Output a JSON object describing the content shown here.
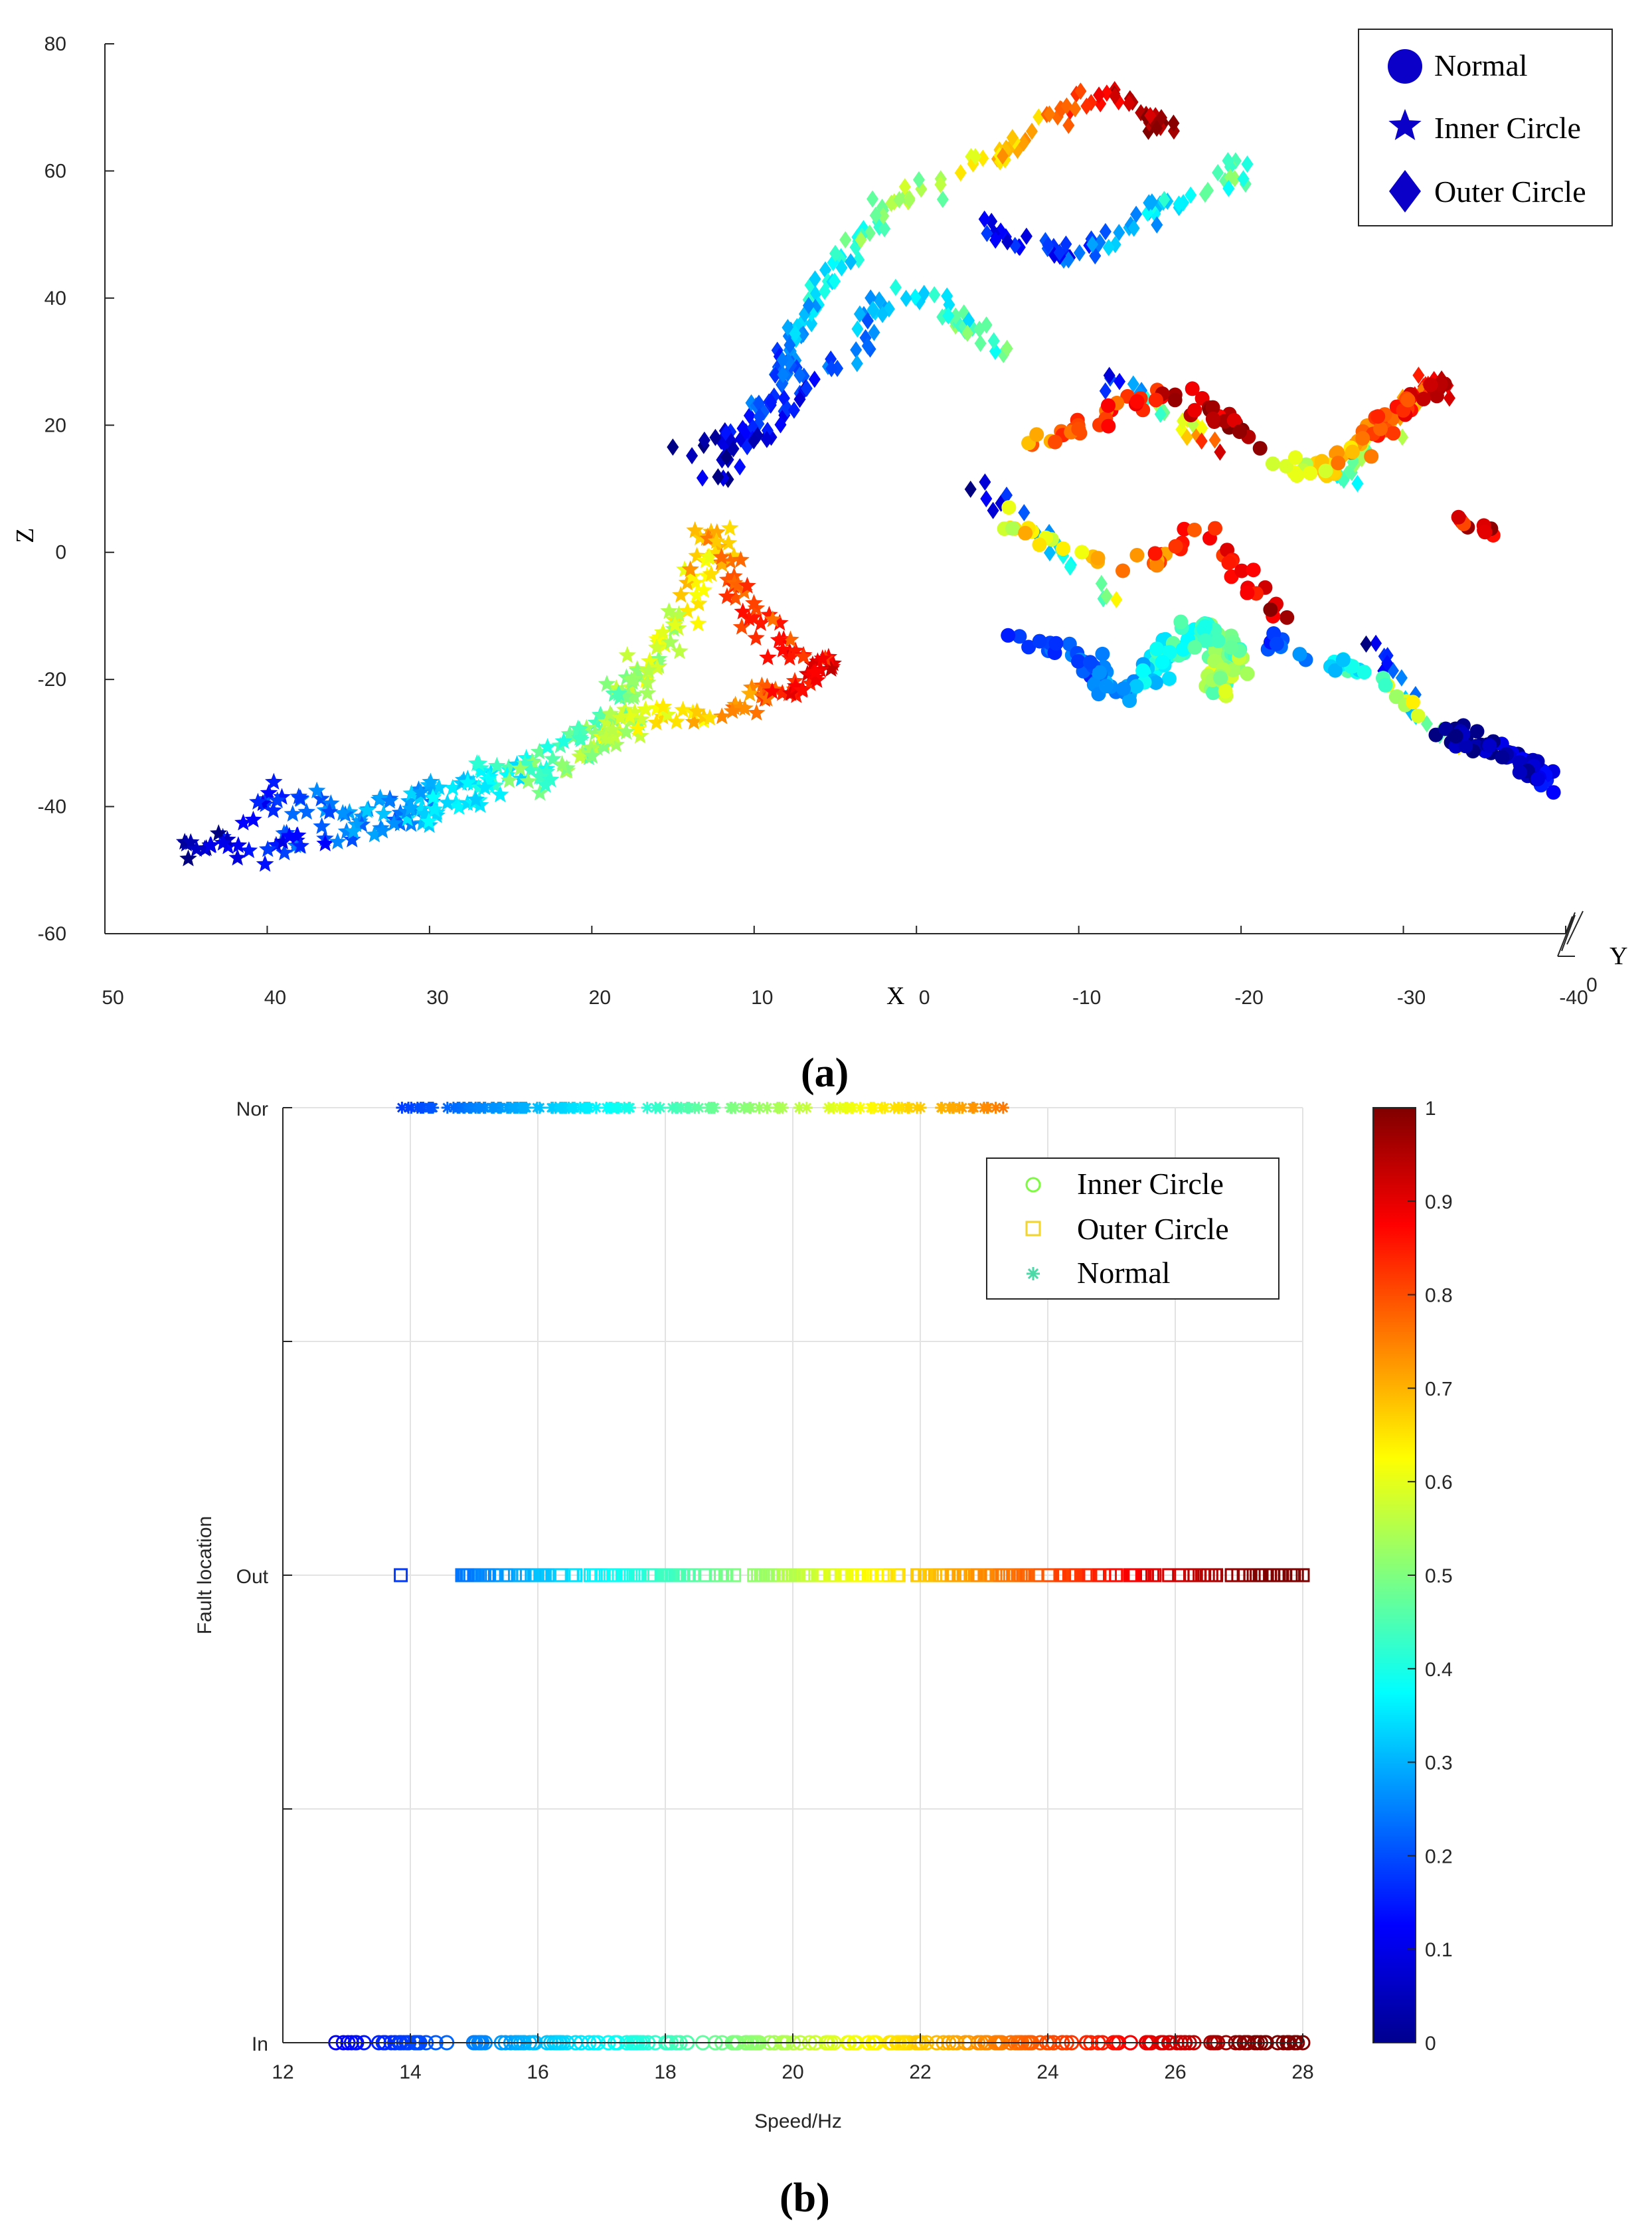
{
  "chart_data": [
    {
      "type": "scatter",
      "panel_label": "(a)",
      "title": "",
      "xlabel": "X",
      "ylabel": "Z",
      "zlabel": "Y",
      "x_ticks": [
        "50",
        "40",
        "30",
        "20",
        "10",
        "0",
        "-10",
        "-20",
        "-30",
        "-40"
      ],
      "z_ticks": [
        "80",
        "60",
        "40",
        "20",
        "0",
        "-20",
        "-40",
        "-60"
      ],
      "y_ticks": [
        "0"
      ],
      "xlim": [
        50,
        -40
      ],
      "zlim": [
        -60,
        80
      ],
      "legend": {
        "position": "top-right",
        "entries": [
          {
            "label": "Normal",
            "marker": "circle"
          },
          {
            "label": "Inner Circle",
            "marker": "star"
          },
          {
            "label": "Outer Circle",
            "marker": "diamond"
          }
        ]
      },
      "series": [
        {
          "name": "Inner Circle",
          "marker": "star",
          "paths": [
            {
              "pts": [
                [
                  46,
                  -47
                ],
                [
                  44,
                  -46
                ],
                [
                  42,
                  -44
                ],
                [
                  40,
                  -38
                ],
                [
                  37,
                  -40
                ],
                [
                  34,
                  -42
                ],
                [
                  31,
                  -39
                ],
                [
                  28,
                  -36
                ],
                [
                  25,
                  -33
                ],
                [
                  22,
                  -30
                ],
                [
                  19,
                  -25
                ],
                [
                  17,
                  -17
                ],
                [
                  15,
                  -10
                ],
                [
                  14,
                  -3
                ],
                [
                  13,
                  3
                ],
                [
                  12,
                  -2
                ],
                [
                  11,
                  -8
                ],
                [
                  9,
                  -14
                ],
                [
                  7,
                  -18
                ],
                [
                  5,
                  -17
                ]
              ],
              "c": [
                0.02,
                0.95
              ],
              "jitter": [
                1.6,
                3.2
              ],
              "count": 230
            },
            {
              "pts": [
                [
                  45,
                  -45
                ],
                [
                  42,
                  -47
                ],
                [
                  38,
                  -45
                ],
                [
                  35,
                  -44
                ],
                [
                  31,
                  -41
                ],
                [
                  27,
                  -38
                ],
                [
                  24,
                  -35
                ],
                [
                  21,
                  -32
                ],
                [
                  19,
                  -28
                ],
                [
                  16,
                  -25
                ],
                [
                  13,
                  -26
                ],
                [
                  10,
                  -22
                ],
                [
                  8,
                  -22
                ],
                [
                  6,
                  -18
                ]
              ],
              "c": [
                0.05,
                0.9
              ],
              "jitter": [
                1.6,
                3.0
              ],
              "count": 160
            }
          ]
        },
        {
          "name": "Outer Circle",
          "marker": "diamond",
          "paths": [
            {
              "pts": [
                [
                  16,
                  16
                ],
                [
                  13,
                  16
                ],
                [
                  11,
                  20
                ],
                [
                  9,
                  26
                ],
                [
                  8,
                  33
                ],
                [
                  7,
                  40
                ],
                [
                  5,
                  46
                ],
                [
                  3,
                  52
                ],
                [
                  1,
                  56
                ],
                [
                  -2,
                  60
                ],
                [
                  -5,
                  63
                ],
                [
                  -7,
                  67
                ],
                [
                  -9,
                  71
                ],
                [
                  -11,
                  72
                ],
                [
                  -13,
                  70
                ],
                [
                  -15,
                  66
                ]
              ],
              "c": [
                0.0,
                1.0
              ],
              "jitter": [
                1.5,
                3.0
              ],
              "count": 170
            },
            {
              "pts": [
                [
                  13,
                  12
                ],
                [
                  10,
                  18
                ],
                [
                  8,
                  24
                ],
                [
                  6,
                  28
                ],
                [
                  4,
                  32
                ],
                [
                  3,
                  38
                ],
                [
                  1,
                  41
                ],
                [
                  -1,
                  40
                ],
                [
                  -3,
                  35
                ],
                [
                  -5,
                  31
                ]
              ],
              "c": [
                0.05,
                0.5
              ],
              "jitter": [
                1.4,
                2.6
              ],
              "count": 80
            },
            {
              "pts": [
                [
                  -3,
                  52
                ],
                [
                  -6,
                  48
                ],
                [
                  -9,
                  47
                ],
                [
                  -11,
                  49
                ],
                [
                  -13,
                  52
                ],
                [
                  -15,
                  55
                ],
                [
                  -17,
                  56
                ],
                [
                  -19,
                  58
                ],
                [
                  -19,
                  62
                ]
              ],
              "c": [
                0.1,
                0.5
              ],
              "jitter": [
                1.3,
                2.6
              ],
              "count": 70
            },
            {
              "pts": [
                [
                  -3,
                  10
                ],
                [
                  -6,
                  6
                ],
                [
                  -8,
                  2
                ],
                [
                  -9,
                  -4
                ],
                [
                  -12,
                  -9
                ]
              ],
              "c": [
                0.05,
                0.6
              ],
              "jitter": [
                1.0,
                2.5
              ],
              "count": 20
            },
            {
              "pts": [
                [
                  -26,
                  11
                ],
                [
                  -27,
                  15
                ],
                [
                  -28,
                  19
                ],
                [
                  -30,
                  23
                ],
                [
                  -31,
                  27
                ],
                [
                  -32,
                  25
                ]
              ],
              "c": [
                0.4,
                0.95
              ],
              "jitter": [
                1.2,
                2.6
              ],
              "count": 60
            },
            {
              "pts": [
                [
                  -11,
                  28
                ],
                [
                  -14,
                  24
                ],
                [
                  -16,
                  20
                ],
                [
                  -18,
                  16
                ]
              ],
              "c": [
                0.1,
                0.9
              ],
              "jitter": [
                1.2,
                2.5
              ],
              "count": 25
            },
            {
              "pts": [
                [
                  -27,
                  -14
                ],
                [
                  -29,
                  -20
                ],
                [
                  -31,
                  -27
                ],
                [
                  -33,
                  -32
                ]
              ],
              "c": [
                0.0,
                0.6
              ],
              "jitter": [
                1.0,
                2.0
              ],
              "count": 18
            }
          ]
        },
        {
          "name": "Normal",
          "marker": "circle",
          "paths": [
            {
              "pts": [
                [
                  -6,
                  16
                ],
                [
                  -9,
                  19
                ],
                [
                  -12,
                  23
                ],
                [
                  -15,
                  26
                ],
                [
                  -17,
                  24
                ],
                [
                  -19,
                  20
                ],
                [
                  -20,
                  17
                ]
              ],
              "c": [
                0.75,
                1.0
              ],
              "jitter": [
                1.3,
                2.6
              ],
              "count": 50
            },
            {
              "pts": [
                [
                  -5,
                  5
                ],
                [
                  -8,
                  1
                ],
                [
                  -11,
                  -3
                ],
                [
                  -14,
                  -1
                ],
                [
                  -17,
                  3
                ],
                [
                  -20,
                  -4
                ],
                [
                  -22,
                  -10
                ]
              ],
              "c": [
                0.6,
                0.95
              ],
              "jitter": [
                1.4,
                3.0
              ],
              "count": 50
            },
            {
              "pts": [
                [
                  -6,
                  -14
                ],
                [
                  -9,
                  -15
                ],
                [
                  -11,
                  -20
                ],
                [
                  -13,
                  -22
                ],
                [
                  -15,
                  -16
                ],
                [
                  -17,
                  -12
                ],
                [
                  -19,
                  -16
                ],
                [
                  -18,
                  -22
                ]
              ],
              "c": [
                0.15,
                0.55
              ],
              "jitter": [
                1.4,
                3.2
              ],
              "count": 150
            },
            {
              "pts": [
                [
                  -22,
                  14
                ],
                [
                  -24,
                  12
                ],
                [
                  -26,
                  15
                ],
                [
                  -28,
                  20
                ],
                [
                  -30,
                  24
                ],
                [
                  -32,
                  26
                ]
              ],
              "c": [
                0.55,
                0.95
              ],
              "jitter": [
                1.2,
                2.6
              ],
              "count": 60
            },
            {
              "pts": [
                [
                  -21,
                  -14
                ],
                [
                  -24,
                  -16
                ],
                [
                  -27,
                  -19
                ],
                [
                  -29,
                  -22
                ],
                [
                  -31,
                  -26
                ]
              ],
              "c": [
                0.2,
                0.65
              ],
              "jitter": [
                1.0,
                2.0
              ],
              "count": 30
            },
            {
              "pts": [
                [
                  -32,
                  -28
                ],
                [
                  -34,
                  -30
                ],
                [
                  -36,
                  -32
                ],
                [
                  -38,
                  -35
                ],
                [
                  -39,
                  -38
                ]
              ],
              "c": [
                0.0,
                0.12
              ],
              "jitter": [
                1.3,
                2.6
              ],
              "count": 70
            },
            {
              "pts": [
                [
                  -33,
                  5
                ],
                [
                  -34,
                  4
                ],
                [
                  -35,
                  3
                ]
              ],
              "c": [
                0.85,
                0.95
              ],
              "jitter": [
                0.6,
                1.2
              ],
              "count": 10
            }
          ]
        }
      ]
    },
    {
      "type": "scatter",
      "panel_label": "(b)",
      "title": "",
      "xlabel": "Speed/Hz",
      "ylabel": "Fault location",
      "xlim": [
        12,
        28
      ],
      "x_ticks": [
        12,
        14,
        16,
        18,
        20,
        22,
        24,
        26,
        28
      ],
      "y_categories": [
        "In",
        "Out",
        "Nor"
      ],
      "legend": {
        "position": "top-right",
        "entries": [
          {
            "label": "Inner Circle",
            "marker": "circle",
            "color": "#7CFC3F"
          },
          {
            "label": "Outer Circle",
            "marker": "square",
            "color": "#F2D42A"
          },
          {
            "label": "Normal",
            "marker": "asterisk",
            "color": "#4CD9A8"
          }
        ]
      },
      "colorbar": {
        "min": 0,
        "max": 1,
        "ticks": [
          "0",
          "0.1",
          "0.2",
          "0.3",
          "0.4",
          "0.5",
          "0.6",
          "0.7",
          "0.8",
          "0.9",
          "1"
        ]
      },
      "series": [
        {
          "name": "Nor",
          "marker": "asterisk",
          "x_range": [
            13.8,
            23.3
          ],
          "count": 150
        },
        {
          "name": "Out",
          "marker": "square",
          "x_range": [
            14.8,
            28.0
          ],
          "outliers": [
            13.85
          ],
          "count": 220
        },
        {
          "name": "In",
          "marker": "circle",
          "x_range": [
            12.8,
            28.0
          ],
          "count": 240
        }
      ]
    }
  ]
}
